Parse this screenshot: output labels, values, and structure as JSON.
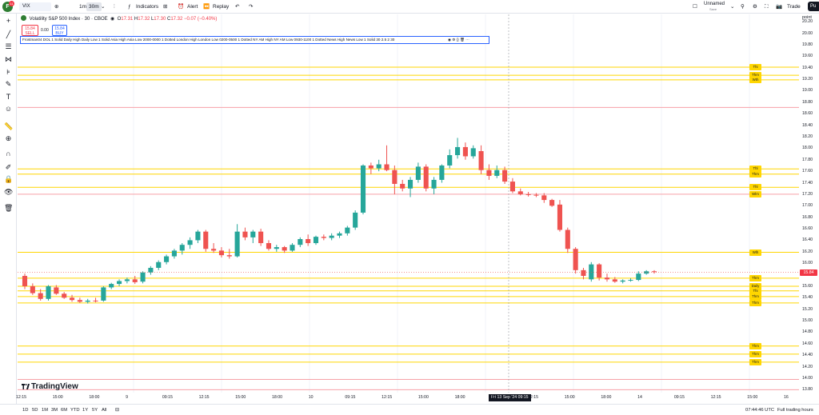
{
  "toolbar": {
    "logo_letter": "F",
    "logo_badge": "11",
    "symbol": "VIX",
    "interval_1m": "1m",
    "interval_30m": "30m",
    "indicators": "Indicators",
    "alert": "Alert",
    "replay": "Replay",
    "layout_name": "Unnamed",
    "layout_status": "Save",
    "trade": "Trade",
    "publish": "Pu"
  },
  "legend": {
    "title": "Volatility S&P 500 Index · 30 · CBOE",
    "ohlc": {
      "o_label": "O",
      "o": "17.31",
      "h_label": "H",
      "h": "17.32",
      "l_label": "L",
      "l": "17.30",
      "c_label": "C",
      "c": "17.32",
      "change": "−0.07 (−0.40%)"
    },
    "bid_value": "15.84",
    "bid_label": "SELL",
    "spread": "0.00",
    "ask_value": "15.84",
    "ask_label": "BUY",
    "indicator": "Frostman04 DOL 1 Solid Daily High Daily Low 1 Solid Asia High Asia Low 2000-0000 1 Dotted London High London Low 0200-0500 1 Dotted NY AM High NY AM Low 0930-1100 1 Dotted News High News Low 1 Solid 30 2.5 2 30"
  },
  "price_axis": {
    "unit_label": "point",
    "labels": [
      "20.20",
      "20.00",
      "19.80",
      "19.60",
      "19.40",
      "19.20",
      "19.00",
      "18.80",
      "18.60",
      "18.40",
      "18.20",
      "18.00",
      "17.80",
      "17.60",
      "17.40",
      "17.20",
      "17.00",
      "16.80",
      "16.60",
      "16.40",
      "16.20",
      "16.00",
      "15.80",
      "15.60",
      "15.40",
      "15.20",
      "15.00",
      "14.80",
      "14.60",
      "14.40",
      "14.20",
      "14.00",
      "13.80"
    ],
    "last_price": "15.84"
  },
  "line_tags": [
    {
      "text": "Thi",
      "price": 19.41
    },
    {
      "text": "Thm",
      "price": 19.27
    },
    {
      "text": "Wth",
      "price": 19.19
    },
    {
      "text": "Thl",
      "price": 17.64
    },
    {
      "text": "Thm",
      "price": 17.55
    },
    {
      "text": "Thl",
      "price": 17.32
    },
    {
      "text": "Wlm",
      "price": 17.2
    },
    {
      "text": "Wlh",
      "price": 16.19
    },
    {
      "text": "Thm",
      "price": 15.74
    },
    {
      "text": "Daily",
      "price": 15.6
    },
    {
      "text": "Thi",
      "price": 15.52
    },
    {
      "text": "Thm",
      "price": 15.42
    },
    {
      "text": "Thm",
      "price": 15.31
    },
    {
      "text": "Thm",
      "price": 14.56
    },
    {
      "text": "Thm",
      "price": 14.42
    },
    {
      "text": "Thm",
      "price": 14.28
    }
  ],
  "time_axis": {
    "labels": [
      "12:15",
      "15:00",
      "18:00",
      "9",
      "09:15",
      "12:15",
      "15:00",
      "18:00",
      "10",
      "09:15",
      "12:15",
      "15:00",
      "18:00",
      "11",
      "12:15",
      "15:00",
      "18:00",
      "14",
      "09:15",
      "12:15",
      "15:00",
      "16"
    ],
    "crosshair": "Fri 13 Sep '24  09:15"
  },
  "bottom": {
    "ranges": [
      "1D",
      "5D",
      "1M",
      "3M",
      "6M",
      "YTD",
      "1Y",
      "5Y",
      "All"
    ],
    "clock": "07:44:46 UTC",
    "session": "Full trading hours"
  },
  "branding": "TradingView",
  "colors": {
    "up": "#26a69a",
    "down": "#ef5350",
    "level_yellow": "#ffd600",
    "level_red": "#f7a1a7",
    "accent_blue": "#2962ff"
  },
  "chart_data": {
    "type": "candlestick",
    "ylim": [
      13.75,
      20.3
    ],
    "candles": [
      {
        "o": 15.78,
        "h": 15.82,
        "l": 15.55,
        "c": 15.6
      },
      {
        "o": 15.6,
        "h": 15.65,
        "l": 15.45,
        "c": 15.48
      },
      {
        "o": 15.48,
        "h": 15.55,
        "l": 15.35,
        "c": 15.38
      },
      {
        "o": 15.38,
        "h": 15.62,
        "l": 15.35,
        "c": 15.6
      },
      {
        "o": 15.58,
        "h": 15.62,
        "l": 15.45,
        "c": 15.47
      },
      {
        "o": 15.47,
        "h": 15.5,
        "l": 15.38,
        "c": 15.4
      },
      {
        "o": 15.4,
        "h": 15.45,
        "l": 15.33,
        "c": 15.36
      },
      {
        "o": 15.36,
        "h": 15.4,
        "l": 15.31,
        "c": 15.33
      },
      {
        "o": 15.33,
        "h": 15.38,
        "l": 15.3,
        "c": 15.35
      },
      {
        "o": 15.35,
        "h": 15.4,
        "l": 15.32,
        "c": 15.34
      },
      {
        "o": 15.35,
        "h": 15.6,
        "l": 15.33,
        "c": 15.58
      },
      {
        "o": 15.58,
        "h": 15.66,
        "l": 15.55,
        "c": 15.64
      },
      {
        "o": 15.64,
        "h": 15.72,
        "l": 15.6,
        "c": 15.69
      },
      {
        "o": 15.69,
        "h": 15.75,
        "l": 15.65,
        "c": 15.72
      },
      {
        "o": 15.72,
        "h": 15.78,
        "l": 15.64,
        "c": 15.67
      },
      {
        "o": 15.68,
        "h": 15.86,
        "l": 15.65,
        "c": 15.84
      },
      {
        "o": 15.84,
        "h": 15.95,
        "l": 15.8,
        "c": 15.92
      },
      {
        "o": 15.92,
        "h": 16.05,
        "l": 15.88,
        "c": 16.02
      },
      {
        "o": 16.02,
        "h": 16.15,
        "l": 15.98,
        "c": 16.12
      },
      {
        "o": 16.12,
        "h": 16.25,
        "l": 16.08,
        "c": 16.22
      },
      {
        "o": 16.22,
        "h": 16.35,
        "l": 16.15,
        "c": 16.32
      },
      {
        "o": 16.32,
        "h": 16.45,
        "l": 16.25,
        "c": 16.4
      },
      {
        "o": 16.4,
        "h": 16.58,
        "l": 16.35,
        "c": 16.55
      },
      {
        "o": 16.55,
        "h": 16.58,
        "l": 16.2,
        "c": 16.25
      },
      {
        "o": 16.25,
        "h": 16.35,
        "l": 16.18,
        "c": 16.22
      },
      {
        "o": 16.22,
        "h": 16.28,
        "l": 16.1,
        "c": 16.14
      },
      {
        "o": 16.14,
        "h": 16.25,
        "l": 16.08,
        "c": 16.12
      },
      {
        "o": 16.12,
        "h": 16.68,
        "l": 16.1,
        "c": 16.55
      },
      {
        "o": 16.55,
        "h": 16.62,
        "l": 16.4,
        "c": 16.45
      },
      {
        "o": 16.45,
        "h": 16.58,
        "l": 16.35,
        "c": 16.55
      },
      {
        "o": 16.55,
        "h": 16.6,
        "l": 16.3,
        "c": 16.35
      },
      {
        "o": 16.35,
        "h": 16.4,
        "l": 16.22,
        "c": 16.25
      },
      {
        "o": 16.25,
        "h": 16.32,
        "l": 16.2,
        "c": 16.28
      },
      {
        "o": 16.28,
        "h": 16.3,
        "l": 16.18,
        "c": 16.22
      },
      {
        "o": 16.22,
        "h": 16.35,
        "l": 16.2,
        "c": 16.32
      },
      {
        "o": 16.32,
        "h": 16.45,
        "l": 16.28,
        "c": 16.42
      },
      {
        "o": 16.42,
        "h": 16.5,
        "l": 16.3,
        "c": 16.35
      },
      {
        "o": 16.35,
        "h": 16.48,
        "l": 16.32,
        "c": 16.46
      },
      {
        "o": 16.46,
        "h": 16.5,
        "l": 16.4,
        "c": 16.44
      },
      {
        "o": 16.44,
        "h": 16.52,
        "l": 16.4,
        "c": 16.48
      },
      {
        "o": 16.48,
        "h": 16.55,
        "l": 16.44,
        "c": 16.52
      },
      {
        "o": 16.52,
        "h": 16.65,
        "l": 16.48,
        "c": 16.62
      },
      {
        "o": 16.62,
        "h": 16.92,
        "l": 16.58,
        "c": 16.88
      },
      {
        "o": 16.88,
        "h": 17.72,
        "l": 16.85,
        "c": 17.7
      },
      {
        "o": 17.7,
        "h": 17.75,
        "l": 17.55,
        "c": 17.65
      },
      {
        "o": 17.65,
        "h": 17.8,
        "l": 17.6,
        "c": 17.72
      },
      {
        "o": 17.72,
        "h": 18.05,
        "l": 17.6,
        "c": 17.62
      },
      {
        "o": 17.62,
        "h": 17.7,
        "l": 17.2,
        "c": 17.38
      },
      {
        "o": 17.38,
        "h": 17.45,
        "l": 17.25,
        "c": 17.3
      },
      {
        "o": 17.3,
        "h": 17.5,
        "l": 17.15,
        "c": 17.45
      },
      {
        "o": 17.45,
        "h": 17.75,
        "l": 17.4,
        "c": 17.68
      },
      {
        "o": 17.68,
        "h": 17.72,
        "l": 17.25,
        "c": 17.3
      },
      {
        "o": 17.3,
        "h": 17.5,
        "l": 17.2,
        "c": 17.45
      },
      {
        "o": 17.45,
        "h": 17.72,
        "l": 17.4,
        "c": 17.7
      },
      {
        "o": 17.7,
        "h": 17.98,
        "l": 17.65,
        "c": 17.88
      },
      {
        "o": 17.88,
        "h": 18.18,
        "l": 17.82,
        "c": 18.02
      },
      {
        "o": 18.02,
        "h": 18.1,
        "l": 17.8,
        "c": 17.86
      },
      {
        "o": 17.86,
        "h": 18.05,
        "l": 17.82,
        "c": 18.0
      },
      {
        "o": 17.95,
        "h": 18.05,
        "l": 17.55,
        "c": 17.62
      },
      {
        "o": 17.62,
        "h": 17.72,
        "l": 17.45,
        "c": 17.52
      },
      {
        "o": 17.52,
        "h": 17.7,
        "l": 17.48,
        "c": 17.62
      },
      {
        "o": 17.62,
        "h": 17.68,
        "l": 17.38,
        "c": 17.42
      },
      {
        "o": 17.42,
        "h": 17.48,
        "l": 17.22,
        "c": 17.25
      },
      {
        "o": 17.25,
        "h": 17.3,
        "l": 17.18,
        "c": 17.2
      },
      {
        "o": 17.2,
        "h": 17.24,
        "l": 17.16,
        "c": 17.19
      },
      {
        "o": 17.19,
        "h": 17.22,
        "l": 17.15,
        "c": 17.18
      },
      {
        "o": 17.18,
        "h": 17.22,
        "l": 17.05,
        "c": 17.1
      },
      {
        "o": 17.1,
        "h": 17.12,
        "l": 16.98,
        "c": 17.0
      },
      {
        "o": 17.02,
        "h": 17.1,
        "l": 16.55,
        "c": 16.58
      },
      {
        "o": 16.58,
        "h": 16.62,
        "l": 16.18,
        "c": 16.25
      },
      {
        "o": 16.25,
        "h": 16.28,
        "l": 15.82,
        "c": 15.88
      },
      {
        "o": 15.88,
        "h": 15.92,
        "l": 15.72,
        "c": 15.78
      },
      {
        "o": 15.72,
        "h": 16.02,
        "l": 15.68,
        "c": 15.98
      },
      {
        "o": 15.98,
        "h": 16.0,
        "l": 15.7,
        "c": 15.75
      },
      {
        "o": 15.75,
        "h": 15.82,
        "l": 15.68,
        "c": 15.72
      },
      {
        "o": 15.72,
        "h": 15.76,
        "l": 15.66,
        "c": 15.68
      },
      {
        "o": 15.68,
        "h": 15.72,
        "l": 15.65,
        "c": 15.7
      },
      {
        "o": 15.7,
        "h": 15.74,
        "l": 15.68,
        "c": 15.71
      },
      {
        "o": 15.71,
        "h": 15.86,
        "l": 15.69,
        "c": 15.82
      },
      {
        "o": 15.82,
        "h": 15.88,
        "l": 15.8,
        "c": 15.86
      },
      {
        "o": 15.86,
        "h": 15.88,
        "l": 15.82,
        "c": 15.85
      }
    ],
    "levels": [
      {
        "price": 19.41,
        "color": "#ffd600"
      },
      {
        "price": 19.27,
        "color": "#ffd600"
      },
      {
        "price": 19.19,
        "color": "#ffd600"
      },
      {
        "price": 18.71,
        "color": "#f7a1a7"
      },
      {
        "price": 17.64,
        "color": "#ffd600"
      },
      {
        "price": 17.55,
        "color": "#ffd600"
      },
      {
        "price": 17.32,
        "color": "#ffd600"
      },
      {
        "price": 17.2,
        "color": "#f7a1a7"
      },
      {
        "price": 16.19,
        "color": "#ffd600"
      },
      {
        "price": 15.74,
        "color": "#ffd600"
      },
      {
        "price": 15.6,
        "color": "#ffd600"
      },
      {
        "price": 15.52,
        "color": "#ffd600"
      },
      {
        "price": 15.42,
        "color": "#ffd600"
      },
      {
        "price": 15.31,
        "color": "#ffd600"
      },
      {
        "price": 14.56,
        "color": "#ffd600"
      },
      {
        "price": 14.42,
        "color": "#ffd600"
      },
      {
        "price": 14.28,
        "color": "#ffd600"
      },
      {
        "price": 13.98,
        "color": "#f7a1a7"
      },
      {
        "price": 13.8,
        "color": "#f7a1a7"
      }
    ]
  }
}
